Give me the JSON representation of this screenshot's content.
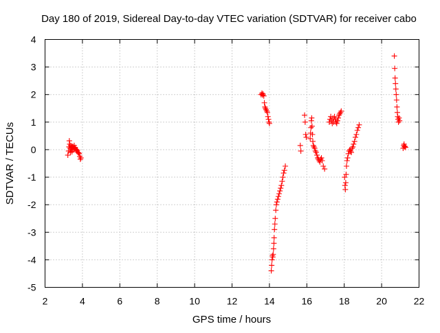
{
  "chart_data": {
    "type": "scatter",
    "title": "Day 180 of 2019, Sidereal Day-to-day VTEC variation (SDTVAR) for receiver cabo",
    "xlabel": "GPS time / hours",
    "ylabel": "SDTVAR / TECUs",
    "xlim": [
      2,
      22
    ],
    "ylim": [
      -5,
      4
    ],
    "xticks": [
      2,
      4,
      6,
      8,
      10,
      12,
      14,
      16,
      18,
      20,
      22
    ],
    "yticks": [
      -5,
      -4,
      -3,
      -2,
      -1,
      0,
      1,
      2,
      3,
      4
    ],
    "xtick_labels": [
      "2",
      "4",
      "6",
      "8",
      "10",
      "12",
      "14",
      "16",
      "18",
      "20",
      "22"
    ],
    "ytick_labels": [
      "-5",
      "-4",
      "-3",
      "-2",
      "-1",
      "0",
      "1",
      "2",
      "3",
      "4"
    ],
    "grid": true,
    "marker": "plus",
    "color": "#ff0000",
    "series": [
      {
        "name": "SDTVAR",
        "points": [
          [
            3.22,
            -0.2
          ],
          [
            3.26,
            -0.05
          ],
          [
            3.28,
            0.1
          ],
          [
            3.3,
            0.32
          ],
          [
            3.32,
            0.2
          ],
          [
            3.34,
            0.05
          ],
          [
            3.36,
            -0.1
          ],
          [
            3.38,
            0.15
          ],
          [
            3.4,
            0.0
          ],
          [
            3.42,
            0.08
          ],
          [
            3.44,
            -0.08
          ],
          [
            3.46,
            0.12
          ],
          [
            3.48,
            0.02
          ],
          [
            3.5,
            0.1
          ],
          [
            3.53,
            0.0
          ],
          [
            3.56,
            0.15
          ],
          [
            3.58,
            0.05
          ],
          [
            3.61,
            0.08
          ],
          [
            3.64,
            0.02
          ],
          [
            3.67,
            0.0
          ],
          [
            3.7,
            -0.05
          ],
          [
            3.73,
            -0.02
          ],
          [
            3.76,
            -0.1
          ],
          [
            3.8,
            -0.12
          ],
          [
            3.83,
            -0.15
          ],
          [
            3.86,
            -0.25
          ],
          [
            3.89,
            -0.35
          ],
          [
            3.92,
            -0.3
          ],
          [
            13.55,
            2.0
          ],
          [
            13.6,
            2.05
          ],
          [
            13.63,
            1.98
          ],
          [
            13.66,
            2.02
          ],
          [
            13.7,
            1.95
          ],
          [
            13.73,
            1.7
          ],
          [
            13.76,
            1.55
          ],
          [
            13.79,
            1.5
          ],
          [
            13.82,
            1.45
          ],
          [
            13.86,
            1.4
          ],
          [
            13.89,
            1.35
          ],
          [
            13.92,
            1.2
          ],
          [
            13.95,
            1.1
          ],
          [
            13.98,
            1.0
          ],
          [
            14.0,
            0.95
          ],
          [
            14.1,
            -4.4
          ],
          [
            14.12,
            -4.2
          ],
          [
            14.14,
            -4.0
          ],
          [
            14.16,
            -3.85
          ],
          [
            14.18,
            -3.9
          ],
          [
            14.2,
            -3.8
          ],
          [
            14.22,
            -3.6
          ],
          [
            14.24,
            -3.4
          ],
          [
            14.25,
            -3.2
          ],
          [
            14.27,
            -2.9
          ],
          [
            14.29,
            -2.7
          ],
          [
            14.31,
            -2.5
          ],
          [
            14.34,
            -2.2
          ],
          [
            14.37,
            -2.0
          ],
          [
            14.4,
            -1.9
          ],
          [
            14.44,
            -1.8
          ],
          [
            14.48,
            -1.7
          ],
          [
            14.52,
            -1.6
          ],
          [
            14.56,
            -1.5
          ],
          [
            14.6,
            -1.4
          ],
          [
            14.64,
            -1.3
          ],
          [
            14.68,
            -1.15
          ],
          [
            14.72,
            -1.0
          ],
          [
            14.76,
            -0.85
          ],
          [
            14.8,
            -0.75
          ],
          [
            14.85,
            -0.6
          ],
          [
            15.65,
            0.15
          ],
          [
            15.68,
            -0.05
          ],
          [
            15.88,
            1.25
          ],
          [
            15.91,
            1.0
          ],
          [
            15.94,
            0.55
          ],
          [
            15.97,
            0.45
          ],
          [
            16.18,
            0.4
          ],
          [
            16.2,
            0.6
          ],
          [
            16.22,
            0.8
          ],
          [
            16.24,
            1.05
          ],
          [
            16.26,
            1.15
          ],
          [
            16.28,
            0.85
          ],
          [
            16.3,
            0.55
          ],
          [
            16.32,
            0.3
          ],
          [
            16.35,
            0.15
          ],
          [
            16.38,
            0.1
          ],
          [
            16.42,
            0.05
          ],
          [
            16.46,
            -0.05
          ],
          [
            16.5,
            -0.1
          ],
          [
            16.54,
            -0.2
          ],
          [
            16.58,
            -0.3
          ],
          [
            16.62,
            -0.35
          ],
          [
            16.66,
            -0.4
          ],
          [
            16.7,
            -0.45
          ],
          [
            16.74,
            -0.35
          ],
          [
            16.78,
            -0.3
          ],
          [
            16.82,
            -0.4
          ],
          [
            16.88,
            -0.6
          ],
          [
            16.95,
            -0.7
          ],
          [
            17.2,
            1.0
          ],
          [
            17.24,
            1.1
          ],
          [
            17.28,
            1.2
          ],
          [
            17.32,
            1.05
          ],
          [
            17.36,
            0.95
          ],
          [
            17.4,
            1.15
          ],
          [
            17.44,
            1.0
          ],
          [
            17.48,
            1.2
          ],
          [
            17.52,
            1.1
          ],
          [
            17.56,
            1.0
          ],
          [
            17.6,
            0.95
          ],
          [
            17.64,
            1.05
          ],
          [
            17.68,
            1.15
          ],
          [
            17.72,
            1.25
          ],
          [
            17.76,
            1.3
          ],
          [
            17.8,
            1.35
          ],
          [
            17.84,
            1.4
          ],
          [
            18.02,
            -1.0
          ],
          [
            18.04,
            -1.3
          ],
          [
            18.06,
            -1.45
          ],
          [
            18.08,
            -1.2
          ],
          [
            18.1,
            -0.9
          ],
          [
            18.12,
            -0.6
          ],
          [
            18.15,
            -0.4
          ],
          [
            18.18,
            -0.3
          ],
          [
            18.22,
            -0.15
          ],
          [
            18.26,
            -0.05
          ],
          [
            18.3,
            0.0
          ],
          [
            18.34,
            -0.05
          ],
          [
            18.38,
            -0.1
          ],
          [
            18.42,
            0.05
          ],
          [
            18.46,
            0.1
          ],
          [
            18.5,
            0.2
          ],
          [
            18.55,
            0.3
          ],
          [
            18.6,
            0.45
          ],
          [
            18.65,
            0.55
          ],
          [
            18.7,
            0.7
          ],
          [
            18.75,
            0.8
          ],
          [
            18.8,
            0.9
          ],
          [
            20.68,
            3.4
          ],
          [
            20.7,
            2.95
          ],
          [
            20.72,
            2.6
          ],
          [
            20.74,
            2.4
          ],
          [
            20.76,
            2.2
          ],
          [
            20.78,
            2.0
          ],
          [
            20.8,
            1.8
          ],
          [
            20.82,
            1.55
          ],
          [
            20.84,
            1.35
          ],
          [
            20.86,
            1.2
          ],
          [
            20.88,
            1.1
          ],
          [
            20.9,
            1.0
          ],
          [
            20.93,
            1.15
          ],
          [
            20.96,
            1.05
          ],
          [
            21.15,
            0.05
          ],
          [
            21.18,
            0.15
          ],
          [
            21.2,
            0.2
          ],
          [
            21.22,
            0.1
          ],
          [
            21.25,
            0.12
          ],
          [
            21.28,
            0.08
          ]
        ]
      }
    ]
  }
}
